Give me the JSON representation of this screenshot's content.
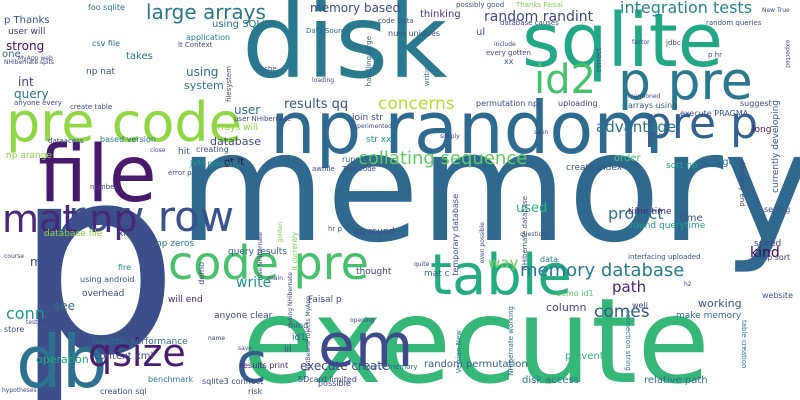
{
  "words": [
    {
      "text": "memory",
      "color": "#30698e"
    },
    {
      "text": "p",
      "color": "#3c4f8a"
    },
    {
      "text": "execute",
      "color": "#35b779"
    },
    {
      "text": "disk",
      "color": "#297a8e"
    },
    {
      "text": "np random",
      "color": "#2f6b8e"
    },
    {
      "text": "file",
      "color": "#481a6c"
    },
    {
      "text": "sqlite",
      "color": "#22a884"
    },
    {
      "text": "pre code",
      "color": "#90d743"
    },
    {
      "text": "p pre",
      "color": "#2a788e"
    },
    {
      "text": "db",
      "color": "#2c728e"
    },
    {
      "text": "table",
      "color": "#25ab82"
    },
    {
      "text": "code pre",
      "color": "#48c16e"
    },
    {
      "text": "row row",
      "color": "#3b518b"
    },
    {
      "text": "em",
      "color": "#3e4a89"
    },
    {
      "text": "pre p",
      "color": "#34618d"
    },
    {
      "text": "mat np",
      "color": "#482878"
    },
    {
      "text": "id2",
      "color": "#46c06f"
    },
    {
      "text": "qsize",
      "color": "#481f70"
    },
    {
      "text": "c",
      "color": "#365d8d"
    },
    {
      "text": "large arrays",
      "color": "#2a788e"
    },
    {
      "text": "memory database",
      "color": "#287c8e"
    },
    {
      "text": "concerns",
      "color": "#b5de2b"
    },
    {
      "text": "collating sequence",
      "color": "#5ec962"
    },
    {
      "text": "integration tests",
      "color": "#25858e"
    },
    {
      "text": "random randint",
      "color": "#3f4788"
    },
    {
      "text": "advantage",
      "color": "#2a788e"
    },
    {
      "text": "comes",
      "color": "#375a8c"
    },
    {
      "text": "project",
      "color": "#2c718e"
    },
    {
      "text": "path",
      "color": "#482475"
    },
    {
      "text": "way",
      "color": "#6ccd5a"
    },
    {
      "text": "kind",
      "color": "#440154"
    },
    {
      "text": "conn",
      "color": "#1f948c"
    },
    {
      "text": "results qq",
      "color": "#3a548c"
    },
    {
      "text": "memory based",
      "color": "#3e4989"
    },
    {
      "text": "using SQLite",
      "color": "#2d708e"
    },
    {
      "text": "strong",
      "color": "#471164"
    },
    {
      "text": "query",
      "color": "#2b748e"
    },
    {
      "text": "int",
      "color": "#414487"
    },
    {
      "text": "np arange",
      "color": "#8bd646"
    },
    {
      "text": "mat c",
      "color": "#2e6e8e"
    },
    {
      "text": "qq round",
      "color": "#404588"
    },
    {
      "text": "used",
      "color": "#2ab07f"
    },
    {
      "text": "execute create",
      "color": "#3e4989"
    },
    {
      "text": "random permutation",
      "color": "#31668e"
    },
    {
      "text": "disk access",
      "color": "#2d718e"
    },
    {
      "text": "relative path",
      "color": "#2e6f8e"
    },
    {
      "text": "make memory",
      "color": "#2d708e"
    },
    {
      "text": "prevent",
      "color": "#32b67a"
    },
    {
      "text": "user",
      "color": "#2e6d8e"
    },
    {
      "text": "using",
      "color": "#2f6c8e"
    },
    {
      "text": "thinking",
      "color": "#46317e"
    },
    {
      "text": "Faisal p",
      "color": "#3d4d8a"
    },
    {
      "text": "make",
      "color": "#3e4a89"
    },
    {
      "text": "write",
      "color": "#1f968b"
    },
    {
      "text": "working",
      "color": "#3b528b"
    },
    {
      "text": "see",
      "color": "#2e6e8e"
    },
    {
      "text": "column",
      "color": "#404588"
    },
    {
      "text": "database",
      "color": "#3e4989"
    },
    {
      "text": "speed",
      "color": "#3f4889"
    },
    {
      "text": "system",
      "color": "#29798e"
    },
    {
      "text": "gt lt",
      "color": "#440154"
    },
    {
      "text": "arrays will",
      "color": "#90d743"
    },
    {
      "text": "time time",
      "color": "#482576"
    },
    {
      "text": "create index",
      "color": "#3b528b"
    },
    {
      "text": "round querytime",
      "color": "#1fa088"
    },
    {
      "text": "operation",
      "color": "#22a884"
    },
    {
      "text": "sort np",
      "color": "#20a386"
    },
    {
      "text": "order",
      "color": "#48c16e"
    },
    {
      "text": "user will",
      "color": "#46307e"
    },
    {
      "text": "long",
      "color": "#471164"
    },
    {
      "text": "time",
      "color": "#39568c"
    },
    {
      "text": "change",
      "color": "#2b758e"
    },
    {
      "text": "currently developing",
      "color": "#3a538b"
    },
    {
      "text": "execute PRAGMA",
      "color": "#39558c"
    },
    {
      "text": "realistic performance",
      "color": "#2c718e"
    },
    {
      "text": "context xml",
      "color": "#3d4e8a"
    },
    {
      "text": "query results",
      "color": "#32648e"
    },
    {
      "text": "np zeros",
      "color": "#277f8e"
    },
    {
      "text": "p Thanks",
      "color": "#3b518b"
    },
    {
      "text": "one",
      "color": "#32648e"
    },
    {
      "text": "np nat",
      "color": "#3d4e8a"
    },
    {
      "text": "takes",
      "color": "#2b748e"
    },
    {
      "text": "foo sqlite",
      "color": "#2f6b8e"
    },
    {
      "text": "application",
      "color": "#26828e"
    },
    {
      "text": "results print",
      "color": "#482475"
    },
    {
      "text": "Source memory",
      "color": "#2e6e8e"
    },
    {
      "text": "uploading",
      "color": "#453781"
    },
    {
      "text": "suggest",
      "color": "#3e4a89"
    },
    {
      "text": "JVM memory",
      "color": "#1f988b"
    },
    {
      "text": "fire",
      "color": "#21908d"
    },
    {
      "text": "will end",
      "color": "#482677"
    },
    {
      "text": "anyone clear",
      "color": "#3e4989"
    },
    {
      "text": "overhead",
      "color": "#3e4989"
    },
    {
      "text": "hit",
      "color": "#38588c"
    },
    {
      "text": "csv file",
      "color": "#2f6b8e"
    },
    {
      "text": "SDcard limited",
      "color": "#3f4788"
    },
    {
      "text": "join str",
      "color": "#3f4788"
    },
    {
      "text": "str xx",
      "color": "#1e9c89"
    },
    {
      "text": "permutation np",
      "color": "#3e4a89"
    },
    {
      "text": "thought",
      "color": "#414487"
    },
    {
      "text": "demo id1",
      "color": "#56c667"
    },
    {
      "text": "data",
      "color": "#2a788e"
    },
    {
      "text": "mind",
      "color": "#3a538b"
    },
    {
      "text": "id1",
      "color": "#2f6b8e"
    },
    {
      "text": "risk",
      "color": "#3b528b"
    },
    {
      "text": "benchmark",
      "color": "#2a788e"
    },
    {
      "text": "creating",
      "color": "#3b518b"
    },
    {
      "text": "creation sql",
      "color": "#3d4d8a"
    },
    {
      "text": "store",
      "color": "#3e4a89"
    },
    {
      "text": "np sort",
      "color": "#3f4788"
    },
    {
      "text": "seeing",
      "color": "#39568c"
    },
    {
      "text": "website",
      "color": "#3b518b"
    },
    {
      "text": "database file",
      "color": "#8bd646"
    },
    {
      "text": "xml file",
      "color": "#3e4989"
    },
    {
      "text": "using android",
      "color": "#38588c"
    },
    {
      "text": "based version",
      "color": "#2c718e"
    },
    {
      "text": "Thanks Faisal",
      "color": "#7ad151"
    },
    {
      "text": "possibly good",
      "color": "#3b518b"
    },
    {
      "text": "random queries",
      "color": "#3e4989"
    },
    {
      "text": "arrays using",
      "color": "#39568c"
    },
    {
      "text": "interfacing uploaded",
      "color": "#3b528b"
    },
    {
      "text": "connection string",
      "color": "#2a788e"
    },
    {
      "text": "table creation",
      "color": "#2a788e"
    },
    {
      "text": "NHibernate working",
      "color": "#2f6b8e"
    },
    {
      "text": "Version New",
      "color": "#2c718e"
    },
    {
      "text": "dataacess",
      "color": "#3e4a89"
    },
    {
      "text": "num uniques",
      "color": "#3d4e8a"
    },
    {
      "text": "Data Source",
      "color": "#2f6b8e"
    },
    {
      "text": "code Data",
      "color": "#3b528b"
    },
    {
      "text": "database causes",
      "color": "#3f4788"
    },
    {
      "text": "NHibernate database",
      "color": "#3b528b"
    },
    {
      "text": "temporary database",
      "color": "#3e4989"
    },
    {
      "text": "lt Context",
      "color": "#3f4788"
    },
    {
      "text": "handling large",
      "color": "#38588c"
    },
    {
      "text": "writing",
      "color": "#2a788e"
    },
    {
      "text": "error p",
      "color": "#3b518b"
    },
    {
      "text": "cache",
      "color": "#38588c"
    },
    {
      "text": "filesystem",
      "color": "#3e4989"
    },
    {
      "text": "True code",
      "color": "#3e4989"
    },
    {
      "text": "running",
      "color": "#2f6b8e"
    },
    {
      "text": "awhile",
      "color": "#3f4788"
    },
    {
      "text": "create table",
      "color": "#3e4989"
    },
    {
      "text": "anyone every",
      "color": "#3f4788"
    },
    {
      "text": "p Im",
      "color": "#3b528b"
    },
    {
      "text": "ul",
      "color": "#3b528b"
    },
    {
      "text": "xx",
      "color": "#3b528b"
    },
    {
      "text": "number",
      "color": "#3f4788"
    },
    {
      "text": "user NHibernate",
      "color": "#3e4989"
    },
    {
      "text": "include",
      "color": "#3f4788"
    },
    {
      "text": "every gotten",
      "color": "#3f4788"
    },
    {
      "text": "correct",
      "color": "#3f4788"
    },
    {
      "text": "jdbc",
      "color": "#3f4788"
    },
    {
      "text": "factor",
      "color": "#3f4788"
    },
    {
      "text": "p hr",
      "color": "#3b528b"
    },
    {
      "text": "mentioned",
      "color": "#3f4788"
    },
    {
      "text": "hr p",
      "color": "#3b528b"
    },
    {
      "text": "New True",
      "color": "#3f4788"
    },
    {
      "text": "expected",
      "color": "#3f4788"
    },
    {
      "text": "close",
      "color": "#3f4788"
    },
    {
      "text": "sqlite3 connect",
      "color": "#3e4989"
    },
    {
      "text": "directory end",
      "color": "#3f4788"
    },
    {
      "text": "demo",
      "color": "#3f4788"
    },
    {
      "text": "run",
      "color": "#3f4788"
    },
    {
      "text": "use NHibernate",
      "color": "#3f4788"
    },
    {
      "text": "lt currently",
      "color": "#7ad151"
    },
    {
      "text": "possible",
      "color": "#3e4989"
    },
    {
      "text": "lil",
      "color": "#3e4989"
    },
    {
      "text": "well",
      "color": "#3f4788"
    },
    {
      "text": "simply",
      "color": "#3f4788"
    },
    {
      "text": "hypotheses",
      "color": "#3f4788"
    },
    {
      "text": "name",
      "color": "#3f4788"
    },
    {
      "text": "save",
      "color": "#3f4788"
    },
    {
      "text": "opening",
      "color": "#3f4788"
    },
    {
      "text": "golden",
      "color": "#7ad151"
    },
    {
      "text": "using NHibernate",
      "color": "#3f4788"
    },
    {
      "text": "even possible",
      "color": "#3f4788"
    },
    {
      "text": "question",
      "color": "#3f4788"
    },
    {
      "text": "NetBeansProjects MyApp",
      "color": "#3f4788"
    },
    {
      "text": "NHibernate spits",
      "color": "#3f4788"
    },
    {
      "text": "MyApp web",
      "color": "#3f4788"
    },
    {
      "text": "seen",
      "color": "#3f4788"
    },
    {
      "text": "experimented",
      "color": "#3f4788"
    },
    {
      "text": "loading",
      "color": "#3f4788"
    },
    {
      "text": "h2",
      "color": "#3f4788"
    },
    {
      "text": "main",
      "color": "#3f4788"
    },
    {
      "text": "course",
      "color": "#3f4788"
    },
    {
      "text": "testing",
      "color": "#3f4788"
    },
    {
      "text": "quite",
      "color": "#3f4788"
    }
  ]
}
